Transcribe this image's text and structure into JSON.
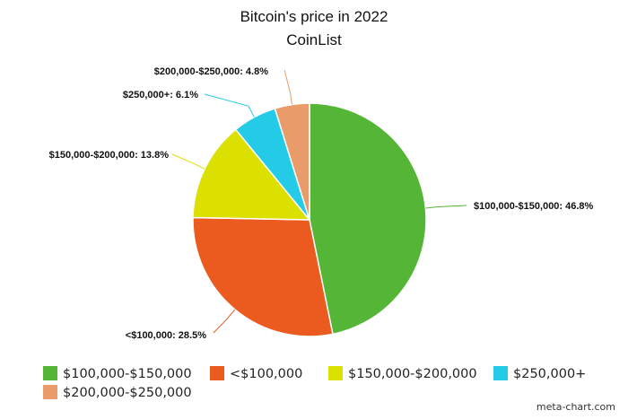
{
  "chart_data": {
    "type": "pie",
    "title": "Bitcoin's price in 2022",
    "subtitle": "CoinList",
    "slices": [
      {
        "label": "$100,000-$150,000",
        "value": 46.8,
        "color": "#55b536"
      },
      {
        "label": "<$100,000",
        "value": 28.5,
        "color": "#eb5a1f"
      },
      {
        "label": "$150,000-$200,000",
        "value": 13.8,
        "color": "#dbe000"
      },
      {
        "label": "$250,000+",
        "value": 6.1,
        "color": "#23cbe6"
      },
      {
        "label": "$200,000-$250,000",
        "value": 4.8,
        "color": "#e99c69"
      }
    ],
    "legend_position": "bottom"
  },
  "watermark": "meta-chart.com"
}
